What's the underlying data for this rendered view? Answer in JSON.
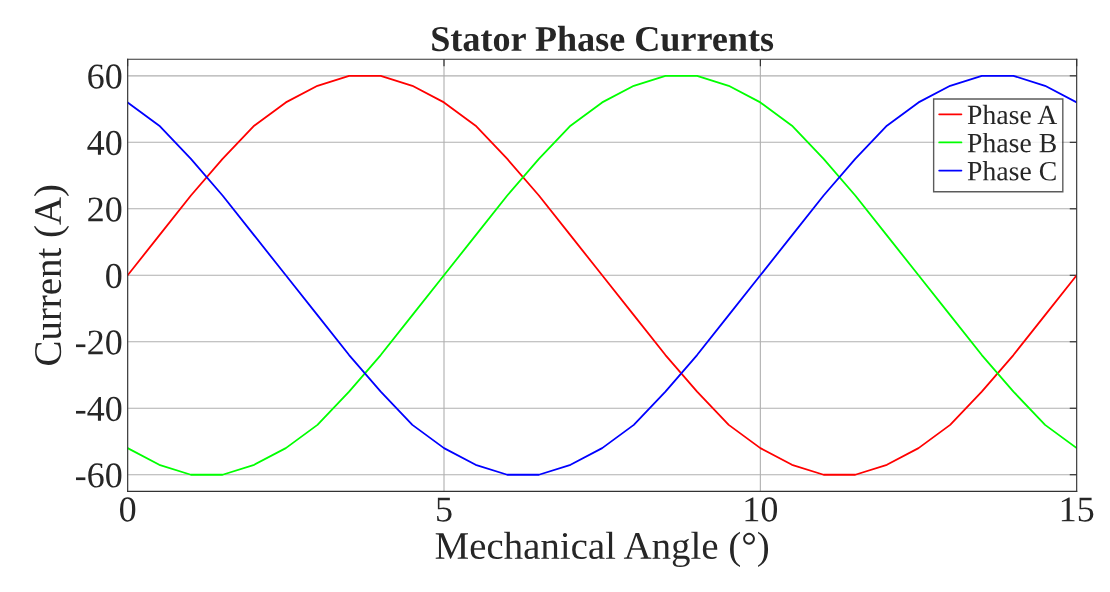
{
  "chart_data": {
    "type": "line",
    "title": "Stator Phase Currents",
    "xlabel": "Mechanical Angle (°)",
    "ylabel": "Current (A)",
    "x": [
      0,
      0.5,
      1,
      1.5,
      2,
      2.5,
      3,
      3.5,
      4,
      4.5,
      5,
      5.5,
      6,
      6.5,
      7,
      7.5,
      8,
      8.5,
      9,
      9.5,
      10,
      10.5,
      11,
      11.5,
      12,
      12.5,
      13,
      13.5,
      14,
      14.5,
      15
    ],
    "series": [
      {
        "name": "Phase A",
        "color": "#ff0000",
        "values": [
          0,
          12,
          24,
          35,
          45,
          52,
          57,
          60,
          60,
          57,
          52,
          45,
          35,
          24,
          12,
          0,
          -12,
          -24,
          -35,
          -45,
          -52,
          -57,
          -60,
          -60,
          -57,
          -52,
          -45,
          -35,
          -24,
          -12,
          0
        ]
      },
      {
        "name": "Phase B",
        "color": "#00ff00",
        "values": [
          -52,
          -57,
          -60,
          -60,
          -57,
          -52,
          -45,
          -35,
          -24,
          -12,
          0,
          12,
          24,
          35,
          45,
          52,
          57,
          60,
          60,
          57,
          52,
          45,
          35,
          24,
          12,
          0,
          -12,
          -24,
          -35,
          -45,
          -52
        ]
      },
      {
        "name": "Phase C",
        "color": "#0000ff",
        "values": [
          52,
          45,
          35,
          24,
          12,
          0,
          -12,
          -24,
          -35,
          -45,
          -52,
          -57,
          -60,
          -60,
          -57,
          -52,
          -45,
          -35,
          -24,
          -12,
          0,
          12,
          24,
          35,
          45,
          52,
          57,
          60,
          60,
          57,
          52
        ]
      }
    ],
    "xlim": [
      0,
      15
    ],
    "xticks": [
      0,
      5,
      10,
      15
    ],
    "ylim": [
      -65,
      65
    ],
    "yticks": [
      -60,
      -40,
      -20,
      0,
      20,
      40,
      60
    ],
    "grid": true,
    "legend": "top right",
    "marker": "none",
    "line_style": "solid"
  }
}
